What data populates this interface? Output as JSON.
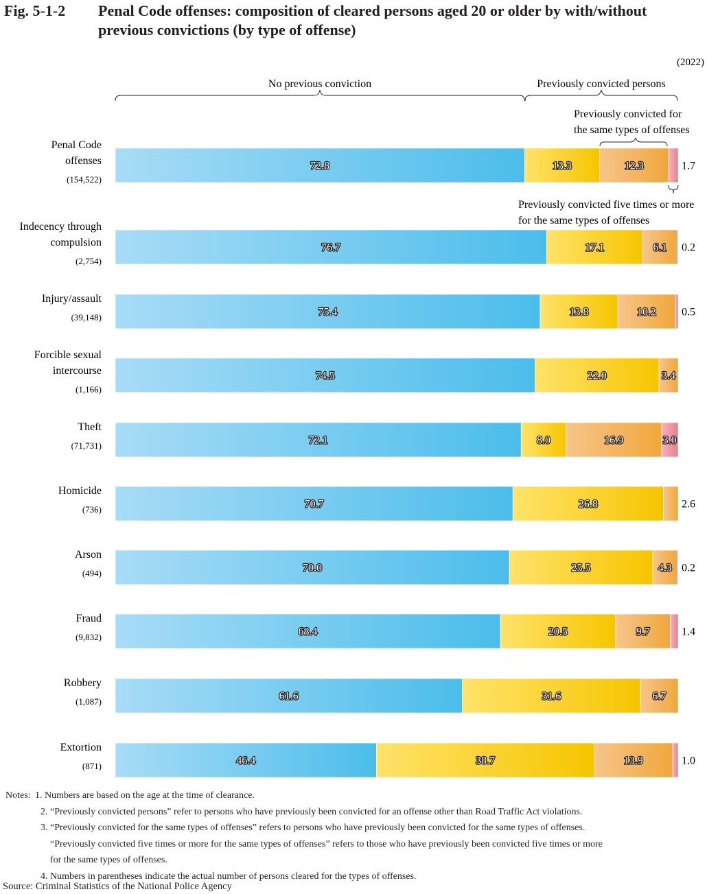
{
  "figure": {
    "number": "Fig. 5-1-2",
    "title": "Penal Code offenses: composition of cleared persons aged 20 or older by with/without previous convictions (by type of offense)",
    "year_label": "(2022)"
  },
  "brace_labels": {
    "no_previous": "No previous conviction",
    "previously_convicted": "Previously convicted persons",
    "same_type_line1": "Previously convicted for",
    "same_type_line2": "the same types of offenses",
    "five_times_line1": "Previously convicted five times or more",
    "five_times_line2": "for the same types of offenses"
  },
  "colors": {
    "no_prev_light": "#a8dcf6",
    "no_prev_dark": "#4bbdeb",
    "prev_light": "#ffe36a",
    "prev_dark": "#f6c500",
    "same_light": "#f7c58a",
    "same_dark": "#f0a73b",
    "five_light": "#f7b2bd",
    "five_dark": "#e4808d"
  },
  "chart_data": {
    "type": "bar",
    "orientation": "horizontal-stacked-100%",
    "unit": "%",
    "xlim": [
      0,
      100
    ],
    "series": [
      {
        "name": "No previous conviction",
        "values": [
          72.8,
          76.7,
          75.4,
          74.5,
          72.1,
          70.7,
          70.0,
          68.4,
          61.6,
          46.4
        ]
      },
      {
        "name": "Previously convicted (other types)",
        "values": [
          13.3,
          17.1,
          13.8,
          22.0,
          8.0,
          26.8,
          25.5,
          20.5,
          31.6,
          38.7
        ]
      },
      {
        "name": "Previously convicted for the same types of offenses",
        "values": [
          12.3,
          6.1,
          10.2,
          3.4,
          16.9,
          2.6,
          4.3,
          9.7,
          6.7,
          13.9
        ]
      },
      {
        "name": "Previously convicted five times or more for the same types of offenses",
        "values": [
          1.7,
          0.2,
          0.5,
          0.0,
          3.0,
          0.0,
          0.2,
          1.4,
          0.0,
          1.0
        ]
      }
    ],
    "categories": [
      {
        "name_lines": [
          "Penal Code",
          "offenses"
        ],
        "count": "(154,522)",
        "labels": [
          "72.8",
          "13.3",
          "12.3",
          ""
        ],
        "outside": "1.7"
      },
      {
        "name_lines": [
          "Indecency through",
          "compulsion"
        ],
        "count": "(2,754)",
        "labels": [
          "76.7",
          "17.1",
          "6.1",
          ""
        ],
        "outside": "0.2"
      },
      {
        "name_lines": [
          "Injury/assault"
        ],
        "count": "(39,148)",
        "labels": [
          "75.4",
          "13.8",
          "10.2",
          ""
        ],
        "outside": "0.5"
      },
      {
        "name_lines": [
          "Forcible sexual",
          "intercourse"
        ],
        "count": "(1,166)",
        "labels": [
          "74.5",
          "22.0",
          "3.4",
          ""
        ],
        "outside": ""
      },
      {
        "name_lines": [
          "Theft"
        ],
        "count": "(71,731)",
        "labels": [
          "72.1",
          "8.0",
          "16.9",
          "3.0"
        ],
        "outside": ""
      },
      {
        "name_lines": [
          "Homicide"
        ],
        "count": "(736)",
        "labels": [
          "70.7",
          "26.8",
          "",
          ""
        ],
        "outside": "2.6"
      },
      {
        "name_lines": [
          "Arson"
        ],
        "count": "(494)",
        "labels": [
          "70.0",
          "25.5",
          "4.3",
          ""
        ],
        "outside": "0.2"
      },
      {
        "name_lines": [
          "Fraud"
        ],
        "count": "(9,832)",
        "labels": [
          "68.4",
          "20.5",
          "9.7",
          ""
        ],
        "outside": "1.4"
      },
      {
        "name_lines": [
          "Robbery"
        ],
        "count": "(1,087)",
        "labels": [
          "61.6",
          "31.6",
          "6.7",
          ""
        ],
        "outside": ""
      },
      {
        "name_lines": [
          "Extortion"
        ],
        "count": "(871)",
        "labels": [
          "46.4",
          "38.7",
          "13.9",
          ""
        ],
        "outside": "1.0"
      }
    ]
  },
  "notes": {
    "lead": "Notes:",
    "n1": "1. Numbers are based on the age at the time of clearance.",
    "n2": "2. “Previously convicted persons” refer to persons who have previously been convicted for an offense other than Road Traffic Act violations.",
    "n3a": "3. “Previously convicted for the same types of offenses” refers to persons who have previously been convicted for the same types of offenses.",
    "n3b": "“Previously convicted five times or more for the same types of offenses” refers to those who have previously been convicted five times or more",
    "n3c": "for the same types of offenses.",
    "n4": "4. Numbers in parentheses indicate the actual number of persons cleared for the types of offenses."
  },
  "source": "Source: Criminal Statistics of the National Police Agency"
}
